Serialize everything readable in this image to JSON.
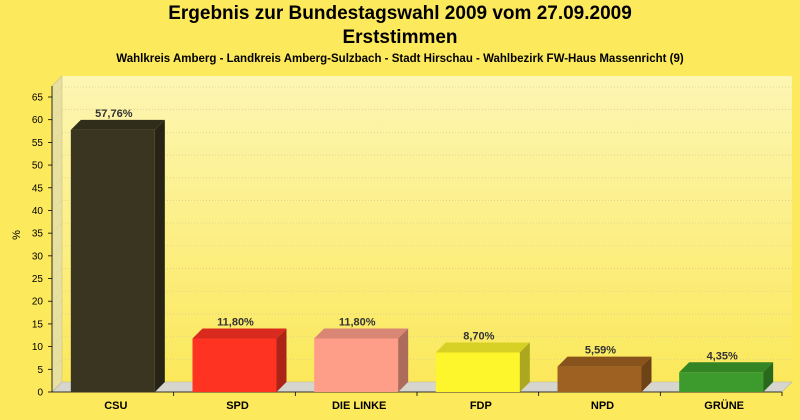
{
  "colors": {
    "background": "#fde95c",
    "plot_top": "#fdf6b4",
    "plot_bottom": "#fbe85a"
  },
  "chart_data": {
    "type": "bar",
    "title": "Ergebnis zur Bundestagswahl 2009 vom 27.09.2009",
    "title2": "Erststimmen",
    "subtitle": "Wahlkreis Amberg - Landkreis Amberg-Sulzbach - Stadt Hirschau - Wahlbezirk FW-Haus Massenricht (9)",
    "ylabel": "%",
    "xlabel": "",
    "ylim": [
      0,
      65
    ],
    "yticks": [
      "0",
      "5",
      "10",
      "15",
      "20",
      "25",
      "30",
      "35",
      "40",
      "45",
      "50",
      "55",
      "60",
      "65"
    ],
    "categories": [
      "CSU",
      "SPD",
      "DIE LINKE",
      "FDP",
      "NPD",
      "GRÜNE"
    ],
    "values": [
      57.76,
      11.8,
      11.8,
      8.7,
      5.59,
      4.35
    ],
    "data_labels": [
      "57,76%",
      "11,80%",
      "11,80%",
      "8,70%",
      "5,59%",
      "4,35%"
    ],
    "bar_colors": [
      "#3a3520",
      "#ff3322",
      "#ff9e88",
      "#fdf62c",
      "#9f6121",
      "#3c9b2c"
    ],
    "grid": true,
    "style": "3d"
  }
}
